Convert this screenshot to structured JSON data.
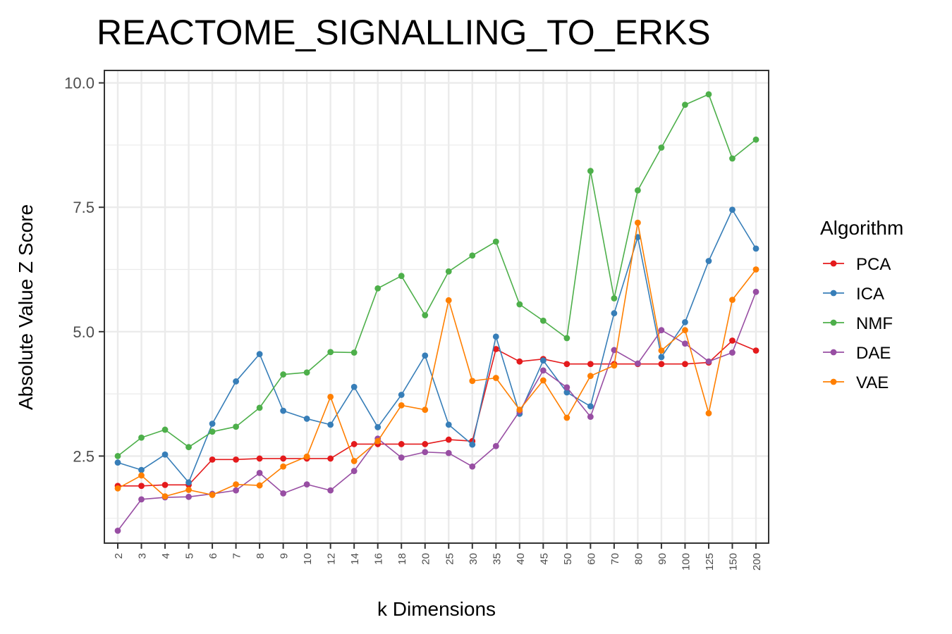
{
  "chart_data": {
    "type": "line",
    "title": "REACTOME_SIGNALLING_TO_ERKS",
    "xlabel": "k Dimensions",
    "ylabel": "Absolute Value Z Score",
    "ylim": [
      0.75,
      10.25
    ],
    "yticks": [
      2.5,
      5.0,
      7.5,
      10.0
    ],
    "ytick_labels": [
      "2.5",
      "5.0",
      "7.5",
      "10.0"
    ],
    "grid": true,
    "legend": {
      "title": "Algorithm",
      "placement": "right"
    },
    "categories": [
      "2",
      "3",
      "4",
      "5",
      "6",
      "7",
      "8",
      "9",
      "10",
      "12",
      "14",
      "16",
      "18",
      "20",
      "25",
      "30",
      "35",
      "40",
      "45",
      "50",
      "60",
      "70",
      "80",
      "90",
      "100",
      "125",
      "150",
      "200"
    ],
    "series": [
      {
        "name": "PCA",
        "color": "#e41a1c",
        "values": [
          1.9,
          1.9,
          1.92,
          1.92,
          2.43,
          2.43,
          2.45,
          2.45,
          2.45,
          2.45,
          2.74,
          2.74,
          2.74,
          2.74,
          2.83,
          2.8,
          4.65,
          4.4,
          4.45,
          4.35,
          4.35,
          4.35,
          4.35,
          4.35,
          4.35,
          4.38,
          4.82,
          4.62
        ]
      },
      {
        "name": "ICA",
        "color": "#377eb8",
        "values": [
          2.37,
          2.22,
          2.53,
          1.97,
          3.15,
          4.0,
          4.55,
          3.41,
          3.25,
          3.13,
          3.89,
          3.08,
          3.73,
          4.52,
          3.13,
          2.73,
          4.9,
          3.35,
          4.42,
          3.78,
          3.5,
          5.37,
          6.9,
          4.49,
          5.19,
          6.42,
          7.45,
          6.67
        ]
      },
      {
        "name": "NMF",
        "color": "#4daf4a",
        "values": [
          2.5,
          2.87,
          3.03,
          2.68,
          2.99,
          3.09,
          3.47,
          4.14,
          4.18,
          4.59,
          4.58,
          5.87,
          6.12,
          5.33,
          6.21,
          6.53,
          6.81,
          5.55,
          5.22,
          4.87,
          8.23,
          5.67,
          7.84,
          8.7,
          9.56,
          9.77,
          8.48,
          8.86
        ]
      },
      {
        "name": "DAE",
        "color": "#984ea3",
        "values": [
          1.0,
          1.63,
          1.67,
          1.68,
          1.74,
          1.81,
          2.16,
          1.75,
          1.93,
          1.81,
          2.2,
          2.85,
          2.47,
          2.58,
          2.56,
          2.29,
          2.7,
          3.4,
          4.22,
          3.88,
          3.29,
          4.63,
          4.36,
          5.03,
          4.76,
          4.4,
          4.58,
          5.8
        ]
      },
      {
        "name": "VAE",
        "color": "#ff7f00",
        "values": [
          1.85,
          2.11,
          1.69,
          1.82,
          1.72,
          1.93,
          1.91,
          2.29,
          2.49,
          3.69,
          2.4,
          2.8,
          3.52,
          3.43,
          5.63,
          4.01,
          4.07,
          3.43,
          4.02,
          3.27,
          4.11,
          4.32,
          7.19,
          4.62,
          5.03,
          3.36,
          5.64,
          6.25
        ]
      }
    ]
  }
}
